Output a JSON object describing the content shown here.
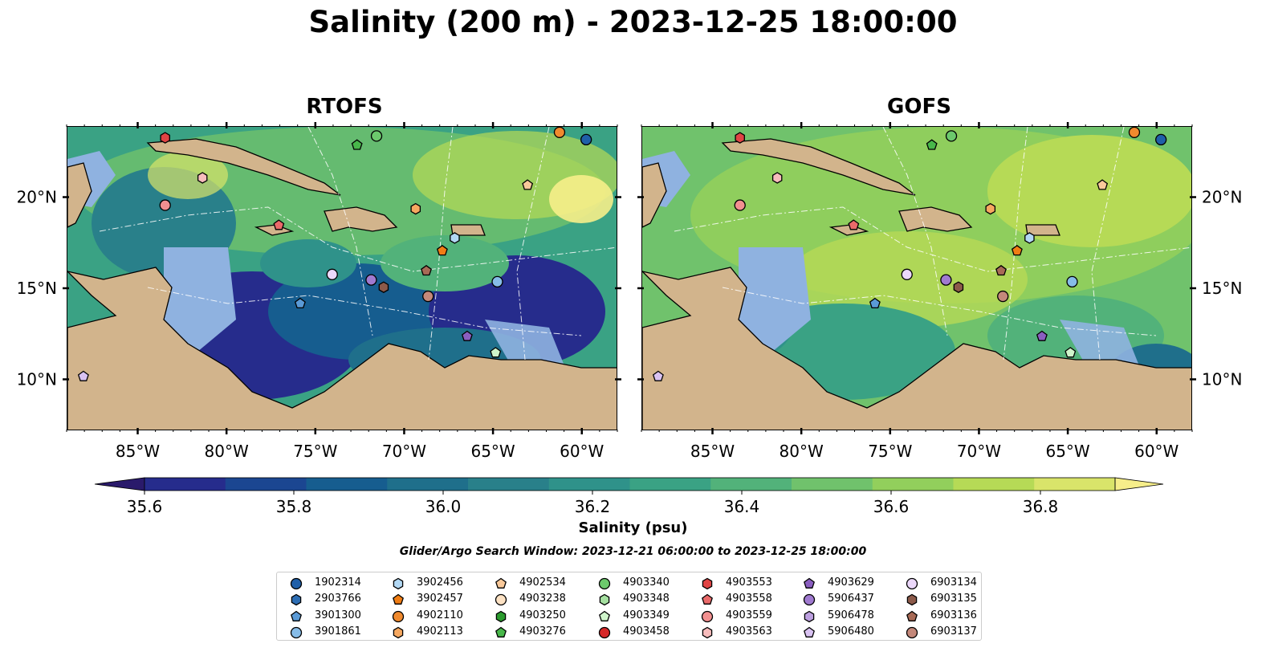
{
  "figure": {
    "title": "Salinity (200 m) - 2023-12-25 18:00:00",
    "panels": [
      {
        "title": "RTOFS"
      },
      {
        "title": "GOFS"
      }
    ],
    "lon_ticks": [
      "85°W",
      "80°W",
      "75°W",
      "70°W",
      "65°W",
      "60°W"
    ],
    "lat_ticks": [
      "20°N",
      "15°N",
      "10°N"
    ],
    "colorbar": {
      "label": "Salinity (psu)",
      "ticks": [
        "35.6",
        "35.8",
        "36.0",
        "36.2",
        "36.4",
        "36.6",
        "36.8"
      ],
      "range": [
        35.6,
        36.9
      ],
      "colors": [
        "#2a1a6b",
        "#262c8c",
        "#1b4691",
        "#165d8f",
        "#1f6f8b",
        "#29808a",
        "#2f928a",
        "#3aa284",
        "#52b27a",
        "#70c26c",
        "#92cf5c",
        "#b6da56",
        "#d9e46a",
        "#f6ee8a"
      ]
    },
    "search_window": "Glider/Argo Search Window: 2023-12-21 06:00:00 to 2023-12-25 18:00:00",
    "land_color": "#d2b48c",
    "shelf_color": "#8fb2e0"
  },
  "chart_data": {
    "type": "map",
    "extent": {
      "lon": [
        -89,
        -58
      ],
      "lat": [
        7.2,
        23.9
      ]
    },
    "floats": [
      {
        "id": "1902314",
        "marker": "circle",
        "color": "#1f5fa8",
        "lon": -59.8,
        "lat": 23.2
      },
      {
        "id": "2903766",
        "marker": "hexagon",
        "color": "#2d6eb4",
        "lon": null,
        "lat": null
      },
      {
        "id": "3901300",
        "marker": "pentagon",
        "color": "#5a9ad6",
        "lon": -75.9,
        "lat": 14.2
      },
      {
        "id": "3901861",
        "marker": "circle",
        "color": "#86bce8",
        "lon": -64.8,
        "lat": 15.4
      },
      {
        "id": "3902456",
        "marker": "hexagon",
        "color": "#b2d8f4",
        "lon": -67.2,
        "lat": 17.8
      },
      {
        "id": "3902457",
        "marker": "pentagon",
        "color": "#f07d14",
        "lon": -67.9,
        "lat": 17.1
      },
      {
        "id": "4902110",
        "marker": "circle",
        "color": "#f08a2e",
        "lon": -61.3,
        "lat": 23.6
      },
      {
        "id": "4902113",
        "marker": "hexagon",
        "color": "#f6a860",
        "lon": -69.4,
        "lat": 19.4
      },
      {
        "id": "4902534",
        "marker": "pentagon",
        "color": "#f9c99a",
        "lon": -63.1,
        "lat": 20.7
      },
      {
        "id": "4903238",
        "marker": "circle",
        "color": "#fde2c4",
        "lon": null,
        "lat": null
      },
      {
        "id": "4903250",
        "marker": "hexagon",
        "color": "#2b9b2e",
        "lon": null,
        "lat": null
      },
      {
        "id": "4903276",
        "marker": "pentagon",
        "color": "#48b74a",
        "lon": -72.7,
        "lat": 22.9
      },
      {
        "id": "4903340",
        "marker": "circle",
        "color": "#6cc96c",
        "lon": -71.6,
        "lat": 23.4
      },
      {
        "id": "4903348",
        "marker": "hexagon",
        "color": "#a5e0a0",
        "lon": null,
        "lat": null
      },
      {
        "id": "4903349",
        "marker": "pentagon",
        "color": "#cff5cb",
        "lon": -64.9,
        "lat": 11.5
      },
      {
        "id": "4903458",
        "marker": "circle",
        "color": "#d62728",
        "lon": null,
        "lat": null
      },
      {
        "id": "4903553",
        "marker": "hexagon",
        "color": "#e04444",
        "lon": -83.5,
        "lat": 23.3
      },
      {
        "id": "4903558",
        "marker": "pentagon",
        "color": "#ea6a6a",
        "lon": -77.1,
        "lat": 18.5
      },
      {
        "id": "4903559",
        "marker": "circle",
        "color": "#f29090",
        "lon": -83.5,
        "lat": 19.6
      },
      {
        "id": "4903563",
        "marker": "hexagon",
        "color": "#f7bcbc",
        "lon": -81.4,
        "lat": 21.1
      },
      {
        "id": "4903629",
        "marker": "pentagon",
        "color": "#8a5ec0",
        "lon": -66.5,
        "lat": 12.4
      },
      {
        "id": "5906437",
        "marker": "circle",
        "color": "#a07ad0",
        "lon": -71.9,
        "lat": 15.5
      },
      {
        "id": "5906478",
        "marker": "hexagon",
        "color": "#bda0e0",
        "lon": null,
        "lat": null
      },
      {
        "id": "5906480",
        "marker": "pentagon",
        "color": "#d9c2f2",
        "lon": -88.1,
        "lat": 10.2
      },
      {
        "id": "6903134",
        "marker": "circle",
        "color": "#ecd8fb",
        "lon": -74.1,
        "lat": 15.8
      },
      {
        "id": "6903135",
        "marker": "hexagon",
        "color": "#8c5a4a",
        "lon": -71.2,
        "lat": 15.1
      },
      {
        "id": "6903136",
        "marker": "pentagon",
        "color": "#a86a56",
        "lon": -68.8,
        "lat": 16.0
      },
      {
        "id": "6903137",
        "marker": "circle",
        "color": "#c4887a",
        "lon": -68.7,
        "lat": 14.6
      }
    ]
  }
}
